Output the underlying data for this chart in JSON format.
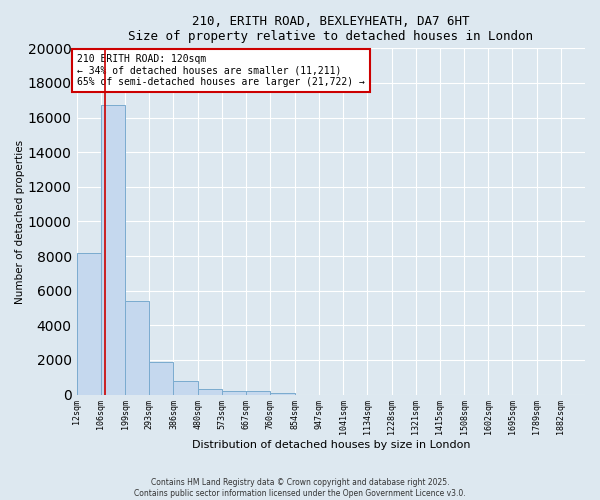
{
  "title_line1": "210, ERITH ROAD, BEXLEYHEATH, DA7 6HT",
  "title_line2": "Size of property relative to detached houses in London",
  "xlabel": "Distribution of detached houses by size in London",
  "ylabel": "Number of detached properties",
  "bar_color": "#c5d8ee",
  "bar_edge_color": "#7aabcf",
  "background_color": "#dde8f0",
  "fig_background_color": "#dde8f0",
  "grid_color": "#ffffff",
  "bins": [
    "12sqm",
    "106sqm",
    "199sqm",
    "293sqm",
    "386sqm",
    "480sqm",
    "573sqm",
    "667sqm",
    "760sqm",
    "854sqm",
    "947sqm",
    "1041sqm",
    "1134sqm",
    "1228sqm",
    "1321sqm",
    "1415sqm",
    "1508sqm",
    "1602sqm",
    "1695sqm",
    "1789sqm",
    "1882sqm"
  ],
  "values": [
    8200,
    16700,
    5400,
    1900,
    800,
    350,
    230,
    180,
    100,
    0,
    0,
    0,
    0,
    0,
    0,
    0,
    0,
    0,
    0,
    0,
    0
  ],
  "bin_edges": [
    12,
    106,
    199,
    293,
    386,
    480,
    573,
    667,
    760,
    854,
    947,
    1041,
    1134,
    1228,
    1321,
    1415,
    1508,
    1602,
    1695,
    1789,
    1882,
    1975
  ],
  "red_line_x": 120,
  "annotation_line1": "210 ERITH ROAD: 120sqm",
  "annotation_line2": "← 34% of detached houses are smaller (11,211)",
  "annotation_line3": "65% of semi-detached houses are larger (21,722) →",
  "annotation_box_color": "#cc0000",
  "ylim": [
    0,
    20000
  ],
  "yticks": [
    0,
    2000,
    4000,
    6000,
    8000,
    10000,
    12000,
    14000,
    16000,
    18000,
    20000
  ],
  "footnote1": "Contains HM Land Registry data © Crown copyright and database right 2025.",
  "footnote2": "Contains public sector information licensed under the Open Government Licence v3.0."
}
